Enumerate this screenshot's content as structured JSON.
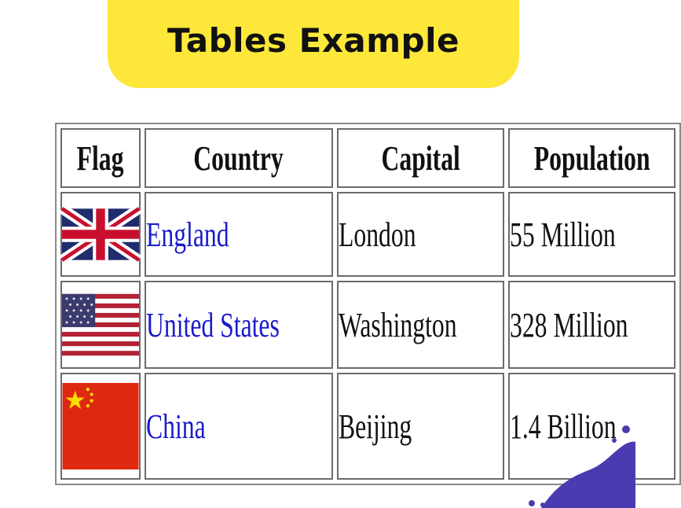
{
  "header": {
    "title": "Tables Example"
  },
  "table": {
    "columns": [
      "Flag",
      "Country",
      "Capital",
      "Population"
    ],
    "rows": [
      {
        "flag_icon": "uk-flag-icon",
        "country": "England",
        "capital": "London",
        "population": "55 Million"
      },
      {
        "flag_icon": "us-flag-icon",
        "country": "United States",
        "capital": "Washington",
        "population": "328 Million"
      },
      {
        "flag_icon": "china-flag-icon",
        "country": "China",
        "capital": "Beijing",
        "population": "1.4 Billion"
      }
    ]
  },
  "colors": {
    "banner": "#fde83a",
    "link": "#1a1acc",
    "decoration": "#4a3bb0"
  }
}
